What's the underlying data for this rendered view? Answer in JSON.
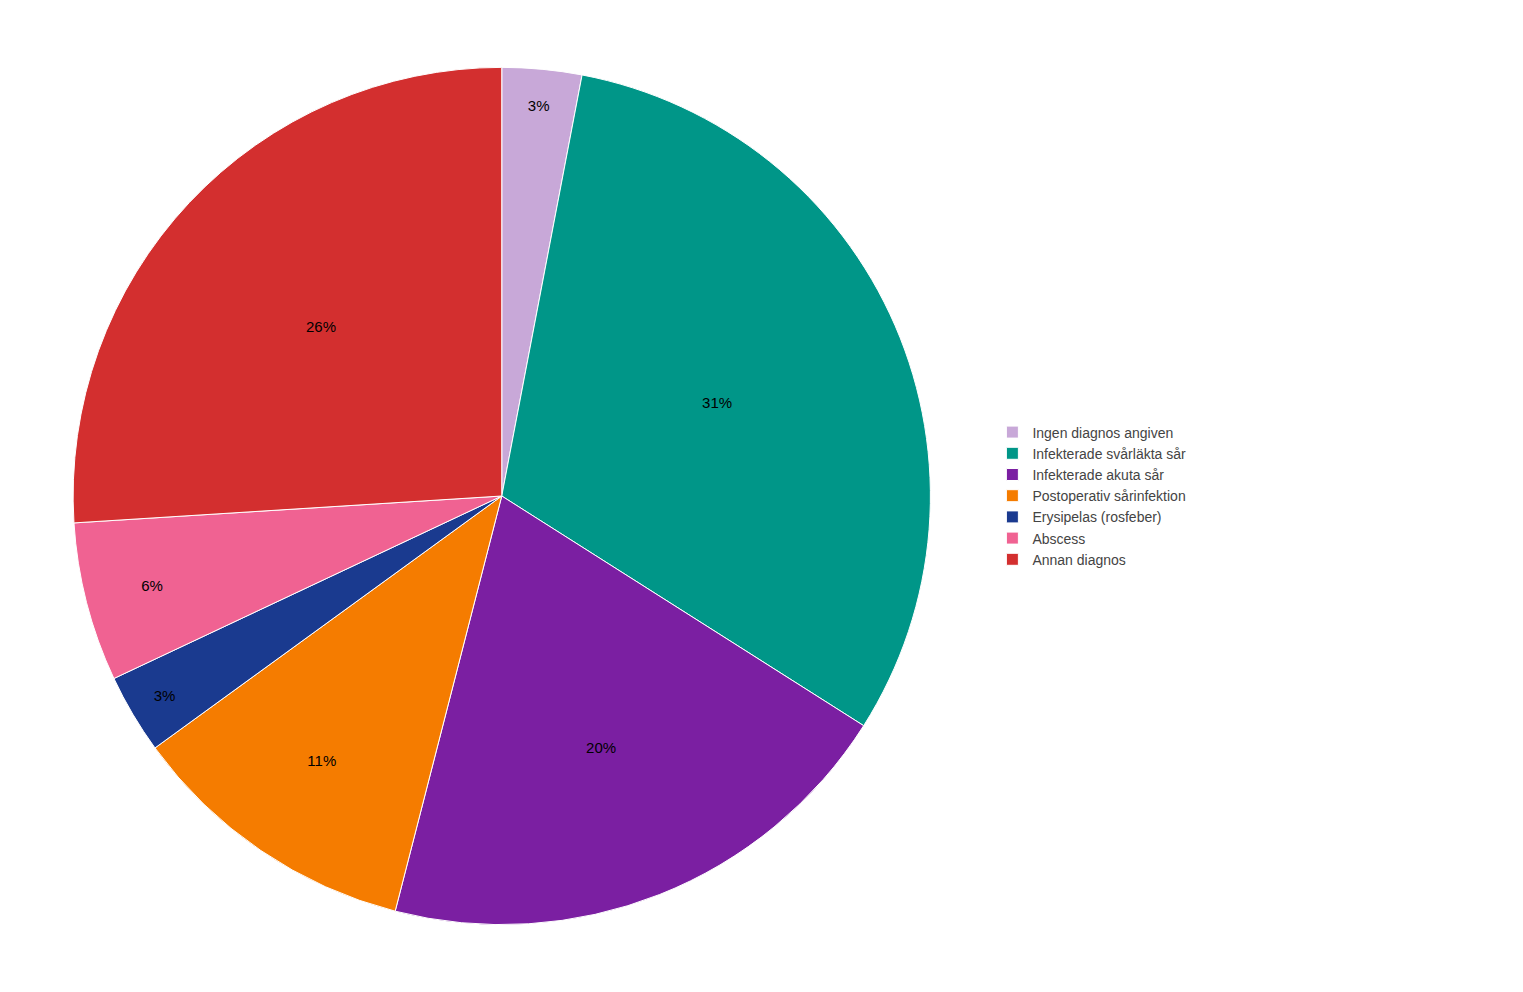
{
  "chart_data": {
    "type": "pie",
    "categories": [
      "Ingen diagnos angiven",
      "Infekterade svårläkta sår",
      "Infekterade akuta sår",
      "Postoperativ sårinfektion",
      "Erysipelas (rosfeber)",
      "Abscess",
      "Annan diagnos"
    ],
    "values": [
      3,
      31,
      20,
      11,
      3,
      6,
      26
    ],
    "value_labels": [
      "3%",
      "31%",
      "20%",
      "11%",
      "3%",
      "6%",
      "26%"
    ],
    "colors": [
      "#C8A8D8",
      "#009688",
      "#7B1FA2",
      "#F57C00",
      "#1A3A8F",
      "#F06292",
      "#D32F2F"
    ],
    "data_labels": true,
    "legend": "right"
  }
}
